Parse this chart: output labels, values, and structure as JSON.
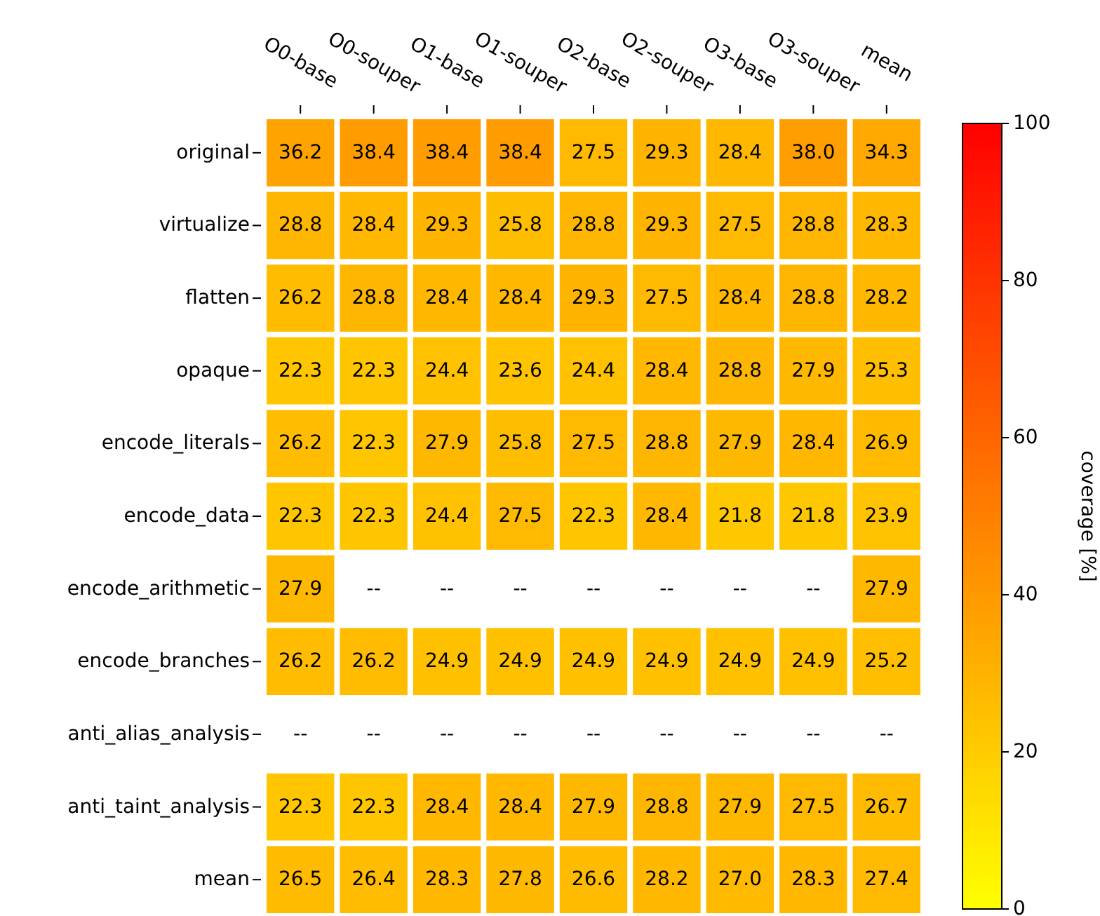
{
  "chart_data": {
    "type": "heatmap",
    "categories": [
      "O0-base",
      "O0-souper",
      "O1-base",
      "O1-souper",
      "O2-base",
      "O2-souper",
      "O3-base",
      "O3-souper",
      "mean"
    ],
    "y_categories": [
      "original",
      "virtualize",
      "flatten",
      "opaque",
      "encode_literals",
      "encode_data",
      "encode_arithmetic",
      "encode_branches",
      "anti_alias_analysis",
      "anti_taint_analysis",
      "mean"
    ],
    "cells": [
      [
        36.2,
        38.4,
        38.4,
        38.4,
        27.5,
        29.3,
        28.4,
        38.0,
        34.3
      ],
      [
        28.8,
        28.4,
        29.3,
        25.8,
        28.8,
        29.3,
        27.5,
        28.8,
        28.3
      ],
      [
        26.2,
        28.8,
        28.4,
        28.4,
        29.3,
        27.5,
        28.4,
        28.8,
        28.2
      ],
      [
        22.3,
        22.3,
        24.4,
        23.6,
        24.4,
        28.4,
        28.8,
        27.9,
        25.3
      ],
      [
        26.2,
        22.3,
        27.9,
        25.8,
        27.5,
        28.8,
        27.9,
        28.4,
        26.9
      ],
      [
        22.3,
        22.3,
        24.4,
        27.5,
        22.3,
        28.4,
        21.8,
        21.8,
        23.9
      ],
      [
        27.9,
        null,
        null,
        null,
        null,
        null,
        null,
        null,
        27.9
      ],
      [
        26.2,
        26.2,
        24.9,
        24.9,
        24.9,
        24.9,
        24.9,
        24.9,
        25.2
      ],
      [
        null,
        null,
        null,
        null,
        null,
        null,
        null,
        null,
        null
      ],
      [
        22.3,
        22.3,
        28.4,
        28.4,
        27.9,
        28.8,
        27.9,
        27.5,
        26.7
      ],
      [
        26.5,
        26.4,
        28.3,
        27.8,
        26.6,
        28.2,
        27.0,
        28.3,
        27.4
      ]
    ],
    "cell_labels": [
      [
        "36.2",
        "38.4",
        "38.4",
        "38.4",
        "27.5",
        "29.3",
        "28.4",
        "38.0",
        "34.3"
      ],
      [
        "28.8",
        "28.4",
        "29.3",
        "25.8",
        "28.8",
        "29.3",
        "27.5",
        "28.8",
        "28.3"
      ],
      [
        "26.2",
        "28.8",
        "28.4",
        "28.4",
        "29.3",
        "27.5",
        "28.4",
        "28.8",
        "28.2"
      ],
      [
        "22.3",
        "22.3",
        "24.4",
        "23.6",
        "24.4",
        "28.4",
        "28.8",
        "27.9",
        "25.3"
      ],
      [
        "26.2",
        "22.3",
        "27.9",
        "25.8",
        "27.5",
        "28.8",
        "27.9",
        "28.4",
        "26.9"
      ],
      [
        "22.3",
        "22.3",
        "24.4",
        "27.5",
        "22.3",
        "28.4",
        "21.8",
        "21.8",
        "23.9"
      ],
      [
        "27.9",
        "--",
        "--",
        "--",
        "--",
        "--",
        "--",
        "--",
        "27.9"
      ],
      [
        "26.2",
        "26.2",
        "24.9",
        "24.9",
        "24.9",
        "24.9",
        "24.9",
        "24.9",
        "25.2"
      ],
      [
        "--",
        "--",
        "--",
        "--",
        "--",
        "--",
        "--",
        "--",
        "--"
      ],
      [
        "22.3",
        "22.3",
        "28.4",
        "28.4",
        "27.9",
        "28.8",
        "27.9",
        "27.5",
        "26.7"
      ],
      [
        "26.5",
        "26.4",
        "28.3",
        "27.8",
        "26.6",
        "28.2",
        "27.0",
        "28.3",
        "27.4"
      ]
    ],
    "data_labels": true,
    "clim": [
      0,
      100
    ],
    "cticks": [
      0,
      20,
      40,
      60,
      80,
      100
    ],
    "clabel": "coverage [%]"
  }
}
